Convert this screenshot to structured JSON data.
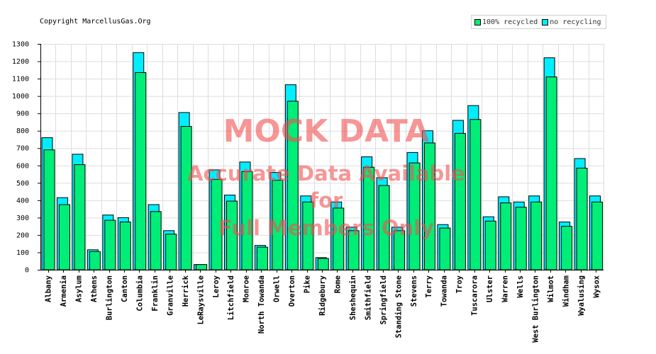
{
  "copyright": "Copyright MarcellusGas.Org",
  "watermark": {
    "line1": "MOCK DATA",
    "line2": "Accurate Data Available",
    "line3": "for",
    "line4": "Full Members Only"
  },
  "colors": {
    "recycled": "#00ee77",
    "no_recycling": "#00eeff",
    "grid": "#dddddd",
    "axis": "#000000"
  },
  "chart_data": {
    "type": "bar",
    "title": "",
    "xlabel": "",
    "ylabel": "",
    "ylim": [
      0,
      1300
    ],
    "yticks": [
      0,
      100,
      200,
      300,
      400,
      500,
      600,
      700,
      800,
      900,
      1000,
      1100,
      1200,
      1300
    ],
    "grid": true,
    "legend_position": "top-right",
    "categories": [
      "Albany",
      "Armenia",
      "Asylum",
      "Athens",
      "Burlington",
      "Canton",
      "Columbia",
      "Franklin",
      "Granville",
      "Herrick",
      "LeRaysville",
      "Leroy",
      "Litchfield",
      "Monroe",
      "North Towanda",
      "Orwell",
      "Overton",
      "Pike",
      "Ridgebury",
      "Rome",
      "Sheshequin",
      "Smithfield",
      "Springfield",
      "Standing Stone",
      "Stevens",
      "Terry",
      "Towanda",
      "Troy",
      "Tuscarora",
      "Ulster",
      "Warren",
      "Wells",
      "West Burlington",
      "Wilmot",
      "Windham",
      "Wyalusing",
      "Wysox"
    ],
    "series": [
      {
        "name": "100% recycled",
        "values": [
          690,
          375,
          605,
          105,
          285,
          275,
          1135,
          335,
          205,
          825,
          30,
          520,
          395,
          565,
          130,
          515,
          970,
          390,
          65,
          355,
          225,
          590,
          485,
          225,
          615,
          730,
          240,
          785,
          865,
          280,
          385,
          360,
          390,
          1110,
          250,
          585,
          390
        ]
      },
      {
        "name": "no recycling",
        "values": [
          760,
          415,
          665,
          115,
          315,
          300,
          1250,
          375,
          225,
          905,
          30,
          575,
          430,
          620,
          140,
          560,
          1065,
          425,
          70,
          390,
          245,
          650,
          530,
          245,
          675,
          800,
          260,
          860,
          945,
          305,
          420,
          390,
          425,
          1220,
          275,
          640,
          425
        ]
      }
    ]
  }
}
